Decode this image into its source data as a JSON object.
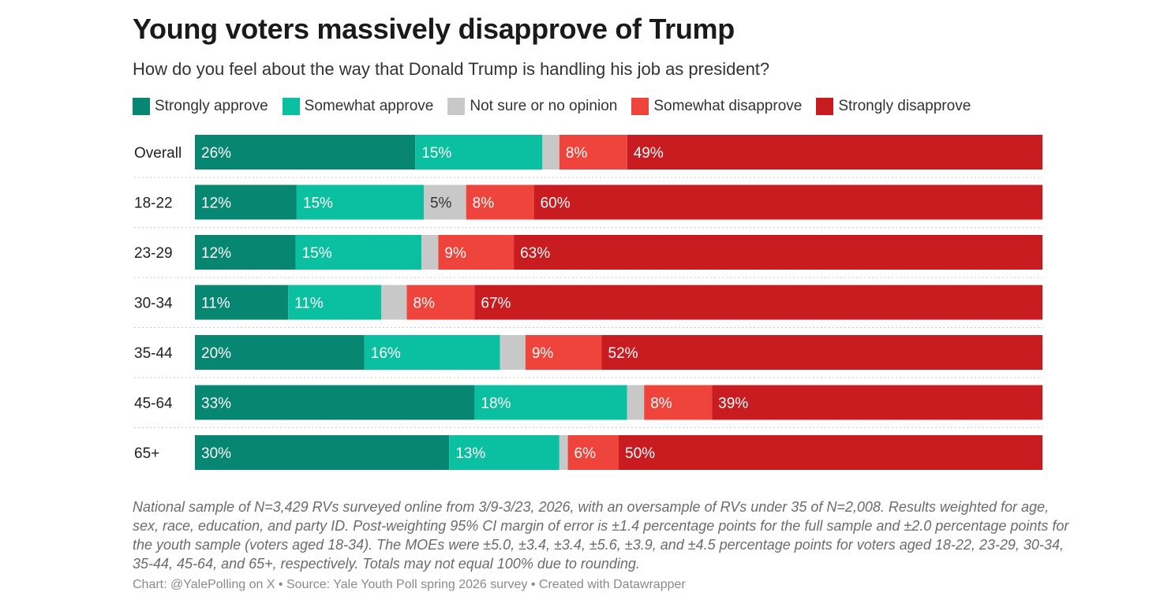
{
  "title": "Young voters massively disapprove of Trump",
  "subtitle": "How do you feel about the way that Donald Trump is handling his job as president?",
  "legend": [
    {
      "label": "Strongly approve",
      "color": "#078671"
    },
    {
      "label": "Somewhat approve",
      "color": "#0bc0a0"
    },
    {
      "label": "Not sure or no opinion",
      "color": "#c8c8c8"
    },
    {
      "label": "Somewhat disapprove",
      "color": "#ef443b"
    },
    {
      "label": "Strongly disapprove",
      "color": "#c91c20"
    }
  ],
  "chart_data": {
    "type": "bar",
    "orientation": "horizontal-stacked",
    "categories": [
      "Overall",
      "18-22",
      "23-29",
      "30-34",
      "35-44",
      "45-64",
      "65+"
    ],
    "series": [
      {
        "name": "Strongly approve",
        "values": [
          26,
          12,
          12,
          11,
          20,
          33,
          30
        ],
        "labels": [
          "26%",
          "12%",
          "12%",
          "11%",
          "20%",
          "33%",
          "30%"
        ]
      },
      {
        "name": "Somewhat approve",
        "values": [
          15,
          15,
          15,
          11,
          16,
          18,
          13
        ],
        "labels": [
          "15%",
          "15%",
          "15%",
          "11%",
          "16%",
          "18%",
          "13%"
        ]
      },
      {
        "name": "Not sure or no opinion",
        "values": [
          2,
          5,
          2,
          3,
          3,
          2,
          1
        ],
        "labels": [
          "",
          "5%",
          "",
          "",
          "",
          "",
          ""
        ]
      },
      {
        "name": "Somewhat disapprove",
        "values": [
          8,
          8,
          9,
          8,
          9,
          8,
          6
        ],
        "labels": [
          "8%",
          "8%",
          "9%",
          "8%",
          "9%",
          "8%",
          "6%"
        ]
      },
      {
        "name": "Strongly disapprove",
        "values": [
          49,
          60,
          63,
          67,
          52,
          39,
          50
        ],
        "labels": [
          "49%",
          "60%",
          "63%",
          "67%",
          "52%",
          "39%",
          "50%"
        ]
      }
    ],
    "xlim": [
      0,
      100
    ],
    "unit": "%"
  },
  "notes": "National sample of N=3,429 RVs surveyed online from 3/9-3/23, 2026, with an oversample of RVs under 35 of N=2,008. Results weighted for age, sex, race, education, and party ID. Post-weighting 95% CI margin of error is ±1.4 percentage points for the full sample and ±2.0 percentage points for the youth sample (voters aged 18-34). The MOEs were ±5.0, ±3.4, ±3.4, ±5.6, ±3.9, and ±4.5 percentage points for voters aged 18-22, 23-29, 30-34, 35-44, 45-64, and 65+, respectively. Totals may not equal 100% due to rounding.",
  "credit": "Chart: @YalePolling on X • Source: Yale Youth Poll spring 2026 survey • Created with Datawrapper"
}
